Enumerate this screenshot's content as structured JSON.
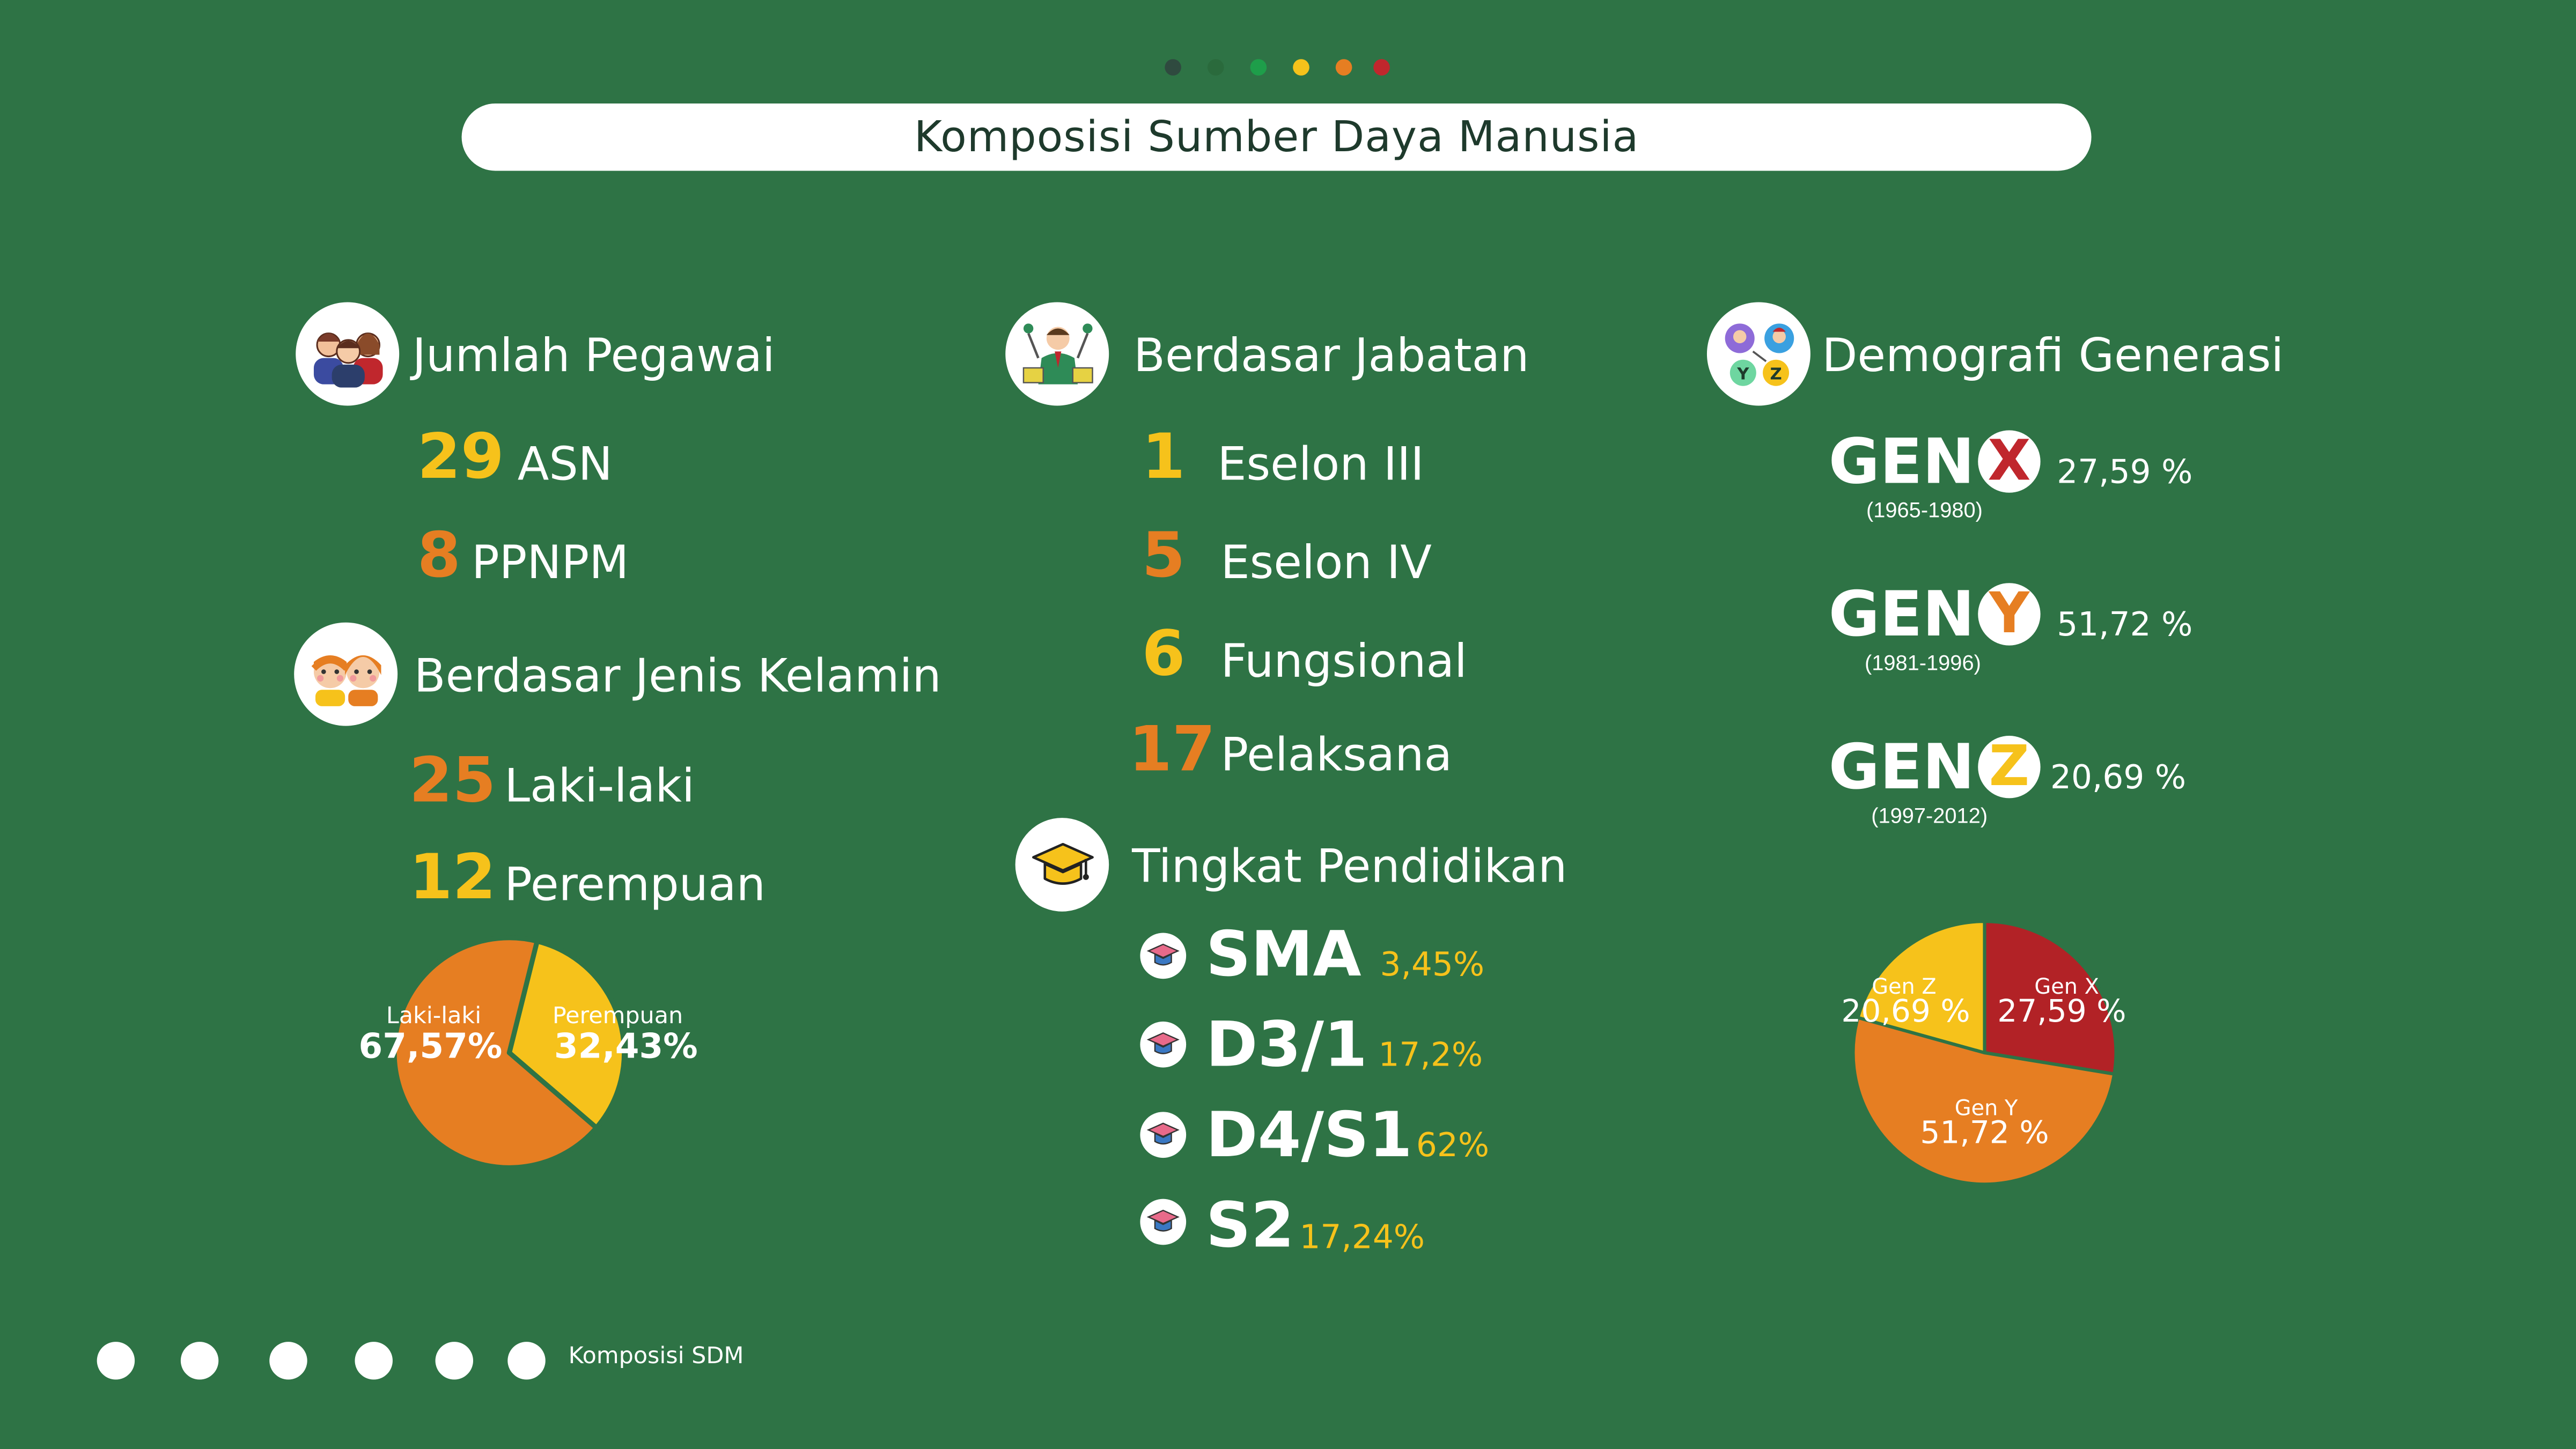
{
  "top_dots": [
    {
      "color": "#2f4a3f"
    },
    {
      "color": "#2a6a3c"
    },
    {
      "color": "#1e9e4a"
    },
    {
      "color": "#f6c21b"
    },
    {
      "color": "#e67e22"
    },
    {
      "color": "#c0272d"
    }
  ],
  "title": "Komposisi Sumber Daya Manusia",
  "jumlah_pegawai": {
    "heading": "Jumlah Pegawai",
    "icon": "people-group-icon",
    "items": [
      {
        "value": "29",
        "label": "ASN",
        "color": "#f6c21b"
      },
      {
        "value": "8",
        "label": "PPNPM",
        "color": "#e67e22"
      }
    ]
  },
  "jenis_kelamin": {
    "heading": "Berdasar Jenis Kelamin",
    "icon": "boy-girl-icon",
    "items": [
      {
        "value": "25",
        "label": "Laki-laki",
        "color": "#e67e22"
      },
      {
        "value": "12",
        "label": "Perempuan",
        "color": "#f6c21b"
      }
    ]
  },
  "jabatan": {
    "heading": "Berdasar Jabatan",
    "icon": "official-position-icon",
    "items": [
      {
        "value": "1",
        "label": "Eselon III",
        "color": "#f6c21b"
      },
      {
        "value": "5",
        "label": "Eselon IV",
        "color": "#e67e22"
      },
      {
        "value": "6",
        "label": "Fungsional",
        "color": "#f6c21b"
      },
      {
        "value": "17",
        "label": "Pelaksana",
        "color": "#e67e22"
      }
    ]
  },
  "pendidikan": {
    "heading": "Tingkat Pendidikan",
    "icon": "graduation-cap-icon",
    "items": [
      {
        "level": "SMA",
        "percent": "3,45%"
      },
      {
        "level": "D3/1",
        "percent": "17,2%"
      },
      {
        "level": "D4/S1",
        "percent": "62%"
      },
      {
        "level": "S2",
        "percent": "17,24%"
      }
    ]
  },
  "generasi": {
    "heading": "Demografi Generasi",
    "icon": "generations-icon",
    "items": [
      {
        "word": "GEN",
        "letter": "X",
        "letter_color": "#c0272d",
        "percent": "27,59 %",
        "years": "(1965-1980)"
      },
      {
        "word": "GEN",
        "letter": "Y",
        "letter_color": "#e67e22",
        "percent": "51,72 %",
        "years": "(1981-1996)"
      },
      {
        "word": "GEN",
        "letter": "Z",
        "letter_color": "#f6c21b",
        "percent": "20,69 %",
        "years": "(1997-2012)"
      }
    ]
  },
  "chart_data": [
    {
      "type": "pie",
      "slices": [
        {
          "name": "Laki-laki",
          "value": 67.57,
          "label": "67,57%",
          "color": "#e67e22"
        },
        {
          "name": "Perempuan",
          "value": 32.43,
          "label": "32,43%",
          "color": "#f6c21b"
        }
      ]
    },
    {
      "type": "pie",
      "slices": [
        {
          "name": "Gen X",
          "value": 27.59,
          "label": "27,59 %",
          "color": "#b22226"
        },
        {
          "name": "Gen Y",
          "value": 51.72,
          "label": "51,72 %",
          "color": "#e67e22"
        },
        {
          "name": "Gen Z",
          "value": 20.69,
          "label": "20,69 %",
          "color": "#f6c21b"
        }
      ]
    }
  ],
  "footer": {
    "dot_count": 6,
    "label": "Komposisi SDM"
  }
}
